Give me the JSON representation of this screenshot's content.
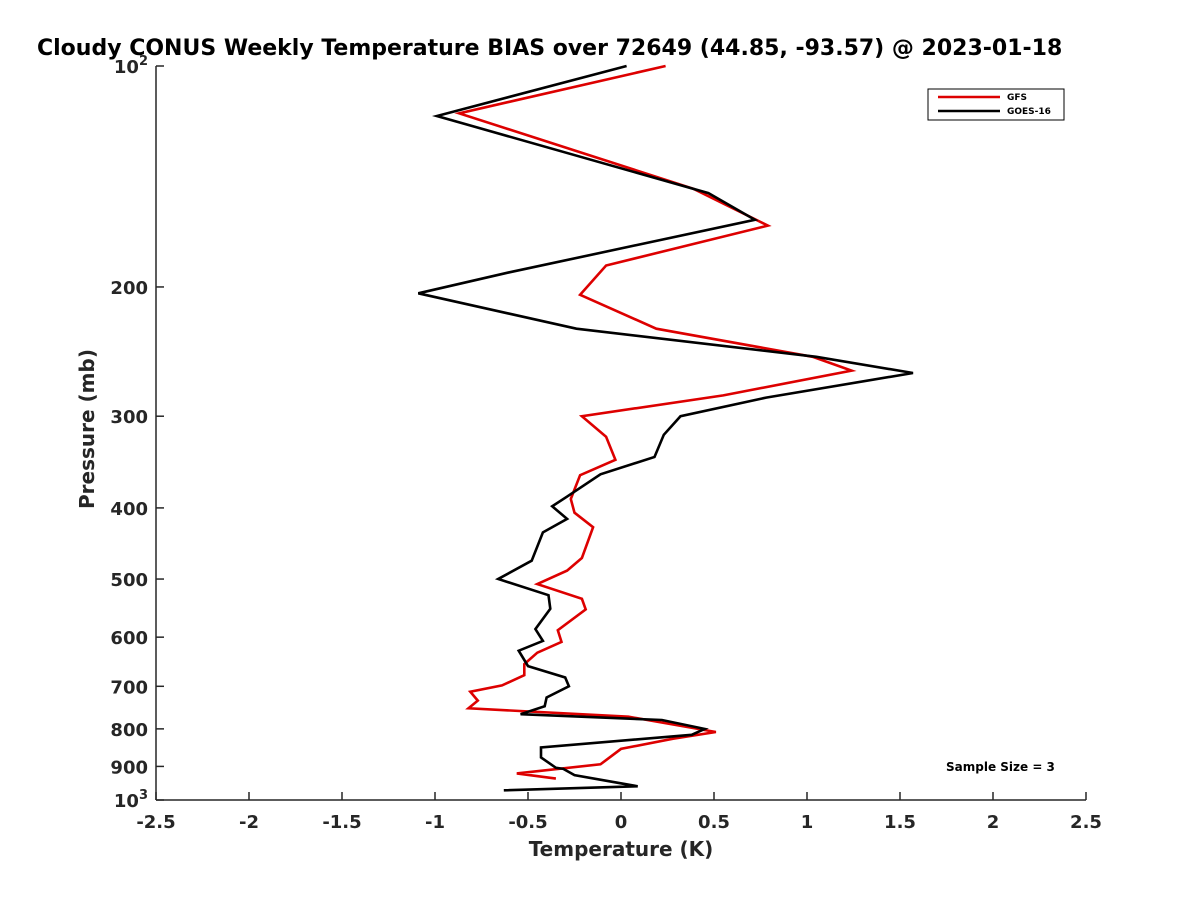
{
  "chart_data": {
    "type": "line",
    "title": "Cloudy CONUS Weekly Temperature BIAS over 72649 (44.85, -93.57) @ 2023-01-18",
    "xlabel": "Temperature (K)",
    "ylabel": "Pressure (mb)",
    "xlim": [
      -2.5,
      2.5
    ],
    "ylim": [
      100,
      1000
    ],
    "y_scale": "log",
    "y_reversed": true,
    "grid": false,
    "legend_position": "top-right",
    "x_ticks": [
      -2.5,
      -2,
      -1.5,
      -1,
      -0.5,
      0,
      0.5,
      1,
      1.5,
      2,
      2.5
    ],
    "x_tick_labels": [
      "-2.5",
      "-2",
      "-1.5",
      "-1",
      "-0.5",
      "0",
      "0.5",
      "1",
      "1.5",
      "2",
      "2.5"
    ],
    "y_ticks": [
      {
        "value": 200,
        "label": "200"
      },
      {
        "value": 300,
        "label": "300"
      },
      {
        "value": 400,
        "label": "400"
      },
      {
        "value": 500,
        "label": "500"
      },
      {
        "value": 600,
        "label": "600"
      },
      {
        "value": 700,
        "label": "700"
      },
      {
        "value": 800,
        "label": "800"
      },
      {
        "value": 900,
        "label": "900"
      }
    ],
    "y_tick_top": {
      "value": 100,
      "base": "10",
      "exp": "2"
    },
    "y_tick_bottom": {
      "value": 1000,
      "base": "10",
      "exp": "3"
    },
    "series": [
      {
        "name": "GFS",
        "color": "#dd0000",
        "points": [
          [
            0.24,
            100
          ],
          [
            -0.87,
            116
          ],
          [
            0.39,
            147
          ],
          [
            0.79,
            165
          ],
          [
            -0.08,
            187
          ],
          [
            -0.22,
            205
          ],
          [
            0.19,
            228
          ],
          [
            1.03,
            249
          ],
          [
            1.24,
            260
          ],
          [
            0.55,
            281
          ],
          [
            -0.21,
            300
          ],
          [
            -0.08,
            320
          ],
          [
            -0.03,
            344
          ],
          [
            -0.22,
            361
          ],
          [
            -0.27,
            389
          ],
          [
            -0.25,
            406
          ],
          [
            -0.15,
            425
          ],
          [
            -0.21,
            468
          ],
          [
            -0.29,
            487
          ],
          [
            -0.45,
            508
          ],
          [
            -0.21,
            532
          ],
          [
            -0.19,
            550
          ],
          [
            -0.34,
            587
          ],
          [
            -0.32,
            609
          ],
          [
            -0.45,
            630
          ],
          [
            -0.52,
            653
          ],
          [
            -0.52,
            676
          ],
          [
            -0.64,
            698
          ],
          [
            -0.81,
            712
          ],
          [
            -0.77,
            732
          ],
          [
            -0.82,
            750
          ],
          [
            0.04,
            770
          ],
          [
            0.51,
            808
          ],
          [
            0.28,
            825
          ],
          [
            0.0,
            852
          ],
          [
            -0.11,
            894
          ],
          [
            -0.56,
            920
          ],
          [
            -0.35,
            935
          ]
        ]
      },
      {
        "name": "GOES-16",
        "color": "#000000",
        "points": [
          [
            0.03,
            100
          ],
          [
            -0.99,
            117
          ],
          [
            0.47,
            149
          ],
          [
            0.72,
            162
          ],
          [
            -0.6,
            191
          ],
          [
            -1.09,
            204
          ],
          [
            -0.24,
            228
          ],
          [
            1.05,
            249
          ],
          [
            1.57,
            262
          ],
          [
            0.78,
            283
          ],
          [
            0.32,
            300
          ],
          [
            0.23,
            318
          ],
          [
            0.18,
            341
          ],
          [
            -0.11,
            360
          ],
          [
            -0.29,
            386
          ],
          [
            -0.37,
            398
          ],
          [
            -0.29,
            414
          ],
          [
            -0.42,
            432
          ],
          [
            -0.48,
            472
          ],
          [
            -0.66,
            500
          ],
          [
            -0.39,
            526
          ],
          [
            -0.38,
            549
          ],
          [
            -0.46,
            585
          ],
          [
            -0.42,
            607
          ],
          [
            -0.55,
            626
          ],
          [
            -0.5,
            657
          ],
          [
            -0.3,
            681
          ],
          [
            -0.28,
            700
          ],
          [
            -0.4,
            725
          ],
          [
            -0.41,
            745
          ],
          [
            -0.54,
            764
          ],
          [
            0.22,
            778
          ],
          [
            0.45,
            800
          ],
          [
            0.38,
            815
          ],
          [
            -0.43,
            848
          ],
          [
            -0.43,
            875
          ],
          [
            -0.35,
            904
          ],
          [
            -0.31,
            907
          ],
          [
            -0.25,
            925
          ],
          [
            0.09,
            958
          ],
          [
            -0.63,
            970
          ]
        ]
      }
    ],
    "legend": [
      {
        "name": "GFS",
        "color": "#dd0000"
      },
      {
        "name": "GOES-16",
        "color": "#000000"
      }
    ],
    "annotation": "Sample Size = 3"
  }
}
